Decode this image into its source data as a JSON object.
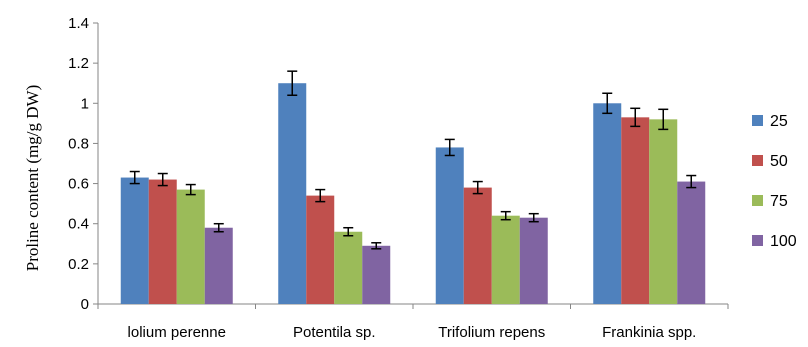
{
  "chart_data": {
    "type": "bar",
    "ylabel": "Proline content (mg/g DW)",
    "xlabel": "",
    "ylim": [
      0,
      1.4
    ],
    "yticks": [
      "0",
      "0.2",
      "0.4",
      "0.6",
      "0.8",
      "1",
      "1.2",
      "1.4"
    ],
    "grid": false,
    "legend_position": "right",
    "categories": [
      "lolium perenne",
      "Potentila sp.",
      "Trifolium repens",
      "Frankinia spp."
    ],
    "series": [
      {
        "name": "25",
        "color": "#4f81bd",
        "values": [
          0.63,
          1.1,
          0.78,
          1.0
        ],
        "errors": [
          0.03,
          0.06,
          0.04,
          0.05
        ]
      },
      {
        "name": "50",
        "color": "#c0504d",
        "values": [
          0.62,
          0.54,
          0.58,
          0.93
        ],
        "errors": [
          0.03,
          0.03,
          0.03,
          0.045
        ]
      },
      {
        "name": "75",
        "color": "#9bbb59",
        "values": [
          0.57,
          0.36,
          0.44,
          0.92
        ],
        "errors": [
          0.025,
          0.02,
          0.02,
          0.05
        ]
      },
      {
        "name": "100",
        "color": "#8064a2",
        "values": [
          0.38,
          0.29,
          0.43,
          0.61
        ],
        "errors": [
          0.02,
          0.015,
          0.02,
          0.03
        ]
      }
    ]
  }
}
